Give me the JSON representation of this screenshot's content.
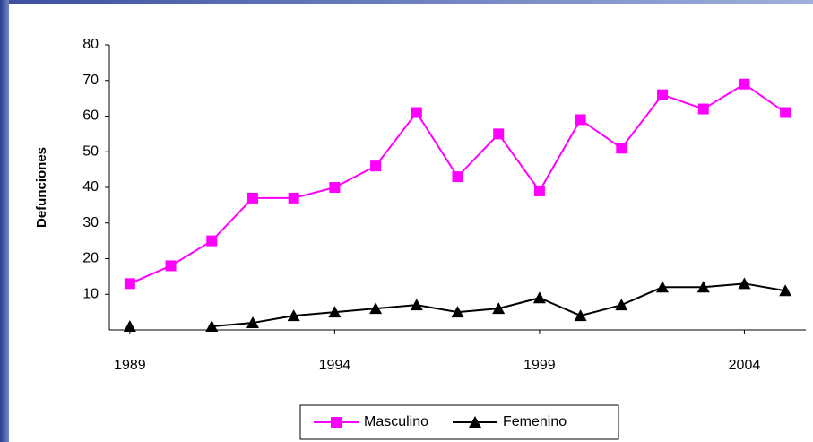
{
  "chart_data": {
    "type": "line",
    "y_label": "Defunciones",
    "x": [
      1989,
      1990,
      1991,
      1992,
      1993,
      1994,
      1995,
      1996,
      1997,
      1998,
      1999,
      2000,
      2001,
      2002,
      2003,
      2004,
      2005
    ],
    "xlim": [
      1988.5,
      2005.5
    ],
    "xticks": [
      1989,
      1994,
      1999,
      2004
    ],
    "ylim": [
      0,
      80
    ],
    "yticks": [
      10,
      20,
      30,
      40,
      50,
      60,
      70,
      80
    ],
    "grid": false,
    "legend": "bottom",
    "series": [
      {
        "name": "Masculino",
        "color": "#ff00ff",
        "marker": "square",
        "values": [
          13,
          18,
          25,
          37,
          37,
          40,
          46,
          61,
          43,
          55,
          39,
          59,
          51,
          66,
          62,
          69,
          61
        ]
      },
      {
        "name": "Femenino",
        "color": "#000000",
        "marker": "triangle",
        "values": [
          1,
          null,
          1,
          2,
          4,
          5,
          6,
          7,
          5,
          6,
          9,
          4,
          7,
          12,
          12,
          13,
          11
        ]
      }
    ]
  }
}
